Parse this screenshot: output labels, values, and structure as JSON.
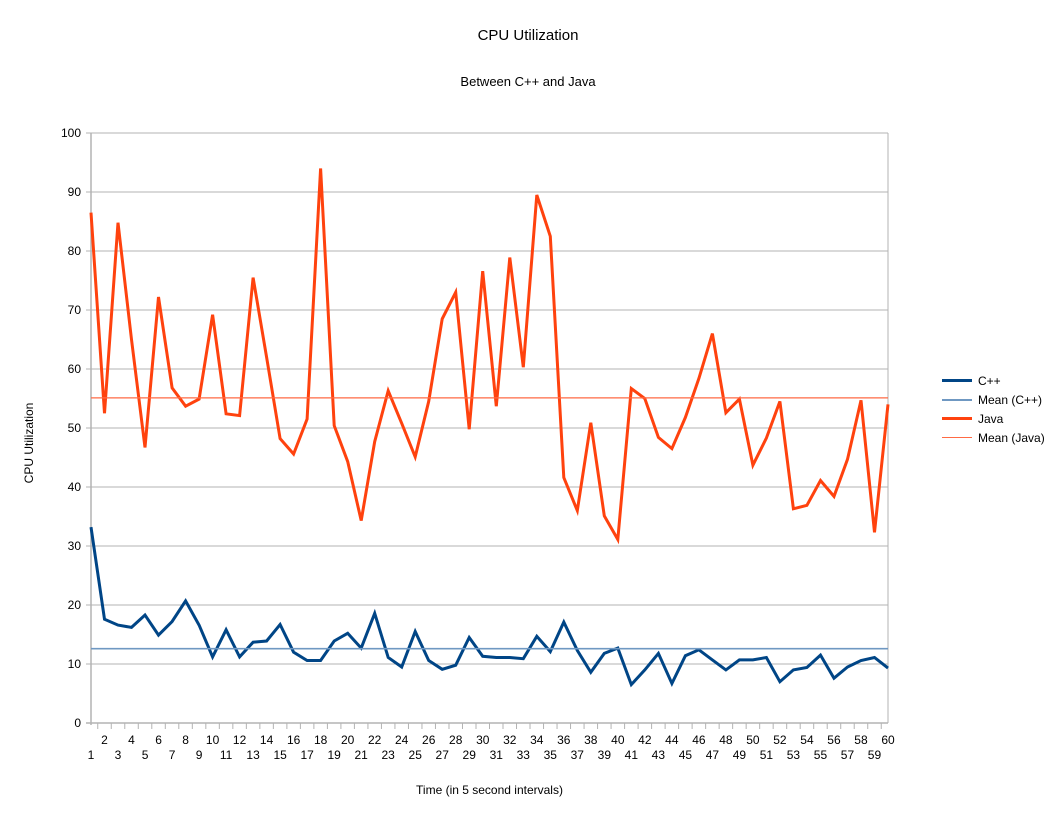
{
  "chart": {
    "title": "CPU Utilization",
    "subtitle": "Between C++ and Java",
    "xlabel": "Time (in 5 second intervals)",
    "ylabel": "CPU Utilization"
  },
  "legend": {
    "items": [
      {
        "label": "C++",
        "color": "#004586",
        "width": 3
      },
      {
        "label": "Mean (C++)",
        "color": "#6f98c2",
        "width": 2
      },
      {
        "label": "Java",
        "color": "#ff420e",
        "width": 3
      },
      {
        "label": "Mean (Java)",
        "color": "#ff6a44",
        "width": 1.5
      }
    ]
  },
  "chart_data": {
    "type": "line",
    "title": "CPU Utilization",
    "subtitle": "Between C++ and Java",
    "xlabel": "Time (in 5 second intervals)",
    "ylabel": "CPU Utilization",
    "ylim": [
      0,
      100
    ],
    "yticks": [
      0,
      10,
      20,
      30,
      40,
      50,
      60,
      70,
      80,
      90,
      100
    ],
    "grid": true,
    "legend_position": "right",
    "x": [
      1,
      2,
      3,
      4,
      5,
      6,
      7,
      8,
      9,
      10,
      11,
      12,
      13,
      14,
      15,
      16,
      17,
      18,
      19,
      20,
      21,
      22,
      23,
      24,
      25,
      26,
      27,
      28,
      29,
      30,
      31,
      32,
      33,
      34,
      35,
      36,
      37,
      38,
      39,
      40,
      41,
      42,
      43,
      44,
      45,
      46,
      47,
      48,
      49,
      50,
      51,
      52,
      53,
      54,
      55,
      56,
      57,
      58,
      59,
      60
    ],
    "series": [
      {
        "name": "C++",
        "color": "#004586",
        "values": [
          33.2,
          17.6,
          16.6,
          16.2,
          18.3,
          14.9,
          17.2,
          20.7,
          16.6,
          11.2,
          15.8,
          11.2,
          13.7,
          13.9,
          16.7,
          12.0,
          10.6,
          10.6,
          13.9,
          15.2,
          12.7,
          18.6,
          11.1,
          9.5,
          15.5,
          10.6,
          9.1,
          9.8,
          14.5,
          11.3,
          11.1,
          11.1,
          10.9,
          14.7,
          12.1,
          17.1,
          12.3,
          8.6,
          11.8,
          12.7,
          6.5,
          9.0,
          11.8,
          6.7,
          11.4,
          12.4,
          10.7,
          9.0,
          10.7,
          10.7,
          11.1,
          7.0,
          9.0,
          9.4,
          11.5,
          7.6,
          9.5,
          10.6,
          11.1,
          9.3
        ]
      },
      {
        "name": "Mean (C++)",
        "color": "#6f98c2",
        "constant": 12.6
      },
      {
        "name": "Java",
        "color": "#ff420e",
        "values": [
          86.5,
          52.5,
          84.8,
          65.0,
          46.7,
          72.2,
          56.8,
          53.7,
          54.9,
          69.2,
          52.4,
          52.1,
          75.5,
          62.0,
          48.2,
          45.6,
          51.5,
          94.0,
          50.4,
          44.3,
          34.3,
          47.7,
          56.3,
          50.8,
          45.1,
          54.5,
          68.5,
          73.0,
          49.8,
          76.6,
          53.7,
          78.9,
          60.3,
          89.5,
          82.5,
          41.6,
          36.0,
          50.9,
          35.1,
          31.1,
          56.7,
          55.0,
          48.4,
          46.5,
          51.8,
          58.4,
          66.0,
          52.6,
          54.9,
          43.7,
          48.3,
          54.5,
          36.3,
          36.9,
          41.1,
          38.4,
          44.7,
          54.7,
          32.3,
          54.0
        ]
      },
      {
        "name": "Mean (Java)",
        "color": "#ff6a44",
        "constant": 55.1
      }
    ]
  }
}
